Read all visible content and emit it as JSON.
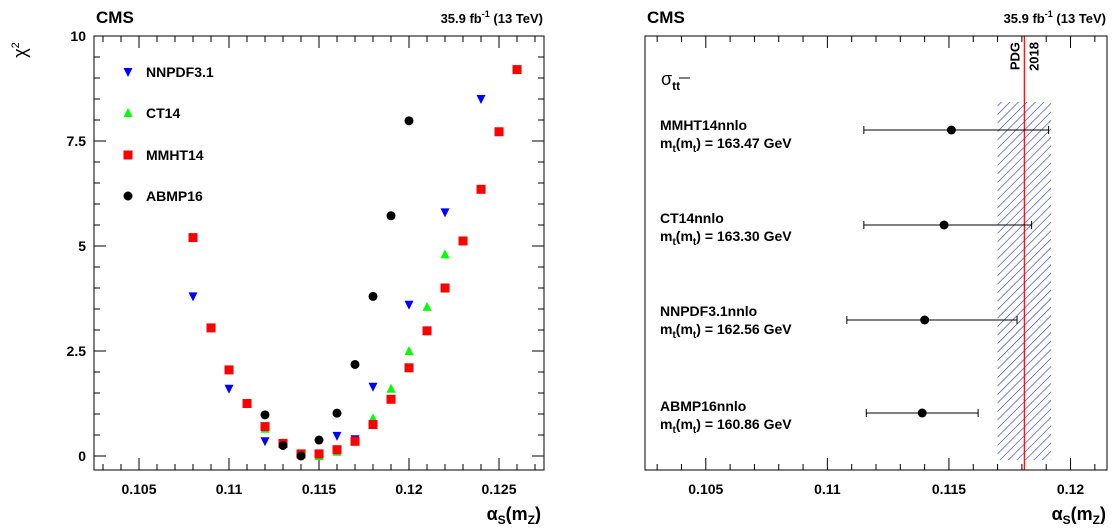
{
  "chart_data": [
    {
      "type": "scatter",
      "experiment": "CMS",
      "lumi": "35.9 fb",
      "lumi_sup": "-1",
      "energy": "(13 TeV)",
      "ylabel": "χ",
      "ylabel_sup": "2",
      "xlabel_main": "α",
      "xlabel_sub": "S",
      "xlabel_rest": "(m",
      "xlabel_sub2": "Z",
      "xlabel_end": ")",
      "xlim": [
        0.1025,
        0.1275
      ],
      "ylim": [
        0,
        10
      ],
      "x_ticks": [
        0.105,
        0.11,
        0.115,
        0.12,
        0.125
      ],
      "x_tick_labels": [
        "0.105",
        "0.11",
        "0.115",
        "0.12",
        "0.125"
      ],
      "y_ticks": [
        0,
        2.5,
        5,
        7.5,
        10
      ],
      "y_tick_labels": [
        "0",
        "2.5",
        "5",
        "7.5",
        "10"
      ],
      "legend_position": "top-left",
      "series": [
        {
          "name": "NNPDF3.1",
          "marker": "triangle-down",
          "color": "#0000ff",
          "x": [
            0.108,
            0.11,
            0.111,
            0.112,
            0.113,
            0.114,
            0.115,
            0.116,
            0.117,
            0.118,
            0.12,
            0.122,
            0.124
          ],
          "y": [
            3.8,
            1.6,
            1.25,
            0.35,
            0.28,
            0.05,
            0.05,
            0.48,
            0.4,
            1.65,
            3.6,
            5.8,
            8.5
          ]
        },
        {
          "name": "CT14",
          "marker": "triangle-up",
          "color": "#00ff00",
          "x": [
            0.111,
            0.112,
            0.113,
            0.114,
            0.115,
            0.116,
            0.117,
            0.118,
            0.119,
            0.12,
            0.121,
            0.122
          ],
          "y": [
            1.25,
            0.65,
            0.3,
            0.05,
            0.0,
            0.1,
            0.35,
            0.9,
            1.6,
            2.5,
            3.55,
            4.8
          ]
        },
        {
          "name": "MMHT14",
          "marker": "square",
          "color": "#ff0000",
          "x": [
            0.108,
            0.109,
            0.11,
            0.111,
            0.112,
            0.113,
            0.114,
            0.115,
            0.116,
            0.117,
            0.118,
            0.119,
            0.12,
            0.121,
            0.122,
            0.123,
            0.124,
            0.125,
            0.126
          ],
          "y": [
            5.2,
            3.05,
            2.05,
            1.25,
            0.7,
            0.3,
            0.05,
            0.05,
            0.15,
            0.35,
            0.75,
            1.35,
            2.1,
            2.98,
            4.0,
            5.12,
            6.35,
            7.72,
            9.2
          ]
        },
        {
          "name": "ABMP16",
          "marker": "circle",
          "color": "#000000",
          "x": [
            0.112,
            0.113,
            0.114,
            0.115,
            0.116,
            0.117,
            0.118,
            0.119,
            0.12
          ],
          "y": [
            0.98,
            0.25,
            0.0,
            0.38,
            1.02,
            2.18,
            3.8,
            5.72,
            7.98
          ]
        }
      ]
    },
    {
      "type": "errorbar",
      "experiment": "CMS",
      "lumi": "35.9 fb",
      "lumi_sup": "-1",
      "energy": "(13 TeV)",
      "title_sym": "σ",
      "title_sub": "tt",
      "xlabel_main": "α",
      "xlabel_sub": "S",
      "xlabel_rest": "(m",
      "xlabel_sub2": "Z",
      "xlabel_end": ")",
      "xlim": [
        0.1025,
        0.1215
      ],
      "x_ticks": [
        0.105,
        0.11,
        0.115,
        0.12
      ],
      "x_tick_labels": [
        "0.105",
        "0.11",
        "0.115",
        "0.12"
      ],
      "reference": {
        "value": 0.1181,
        "uncertainty": 0.0011,
        "label1": "PDG",
        "label2": "2018",
        "line_color": "#ff0000",
        "band_color": "#0000cc"
      },
      "points": [
        {
          "label": "MMHT14nnlo",
          "mass_prefix": "m",
          "mass_sub1": "t",
          "mass_mid": "(m",
          "mass_sub2": "t",
          "mass_value": ") = 163.47 GeV",
          "value": 0.1151,
          "err_lo": 0.0036,
          "err_hi": 0.004
        },
        {
          "label": "CT14nnlo",
          "mass_prefix": "m",
          "mass_sub1": "t",
          "mass_mid": "(m",
          "mass_sub2": "t",
          "mass_value": ") = 163.30 GeV",
          "value": 0.1148,
          "err_lo": 0.0033,
          "err_hi": 0.0036
        },
        {
          "label": "NNPDF3.1nnlo",
          "mass_prefix": "m",
          "mass_sub1": "t",
          "mass_mid": "(m",
          "mass_sub2": "t",
          "mass_value": ") = 162.56 GeV",
          "value": 0.114,
          "err_lo": 0.0032,
          "err_hi": 0.0038
        },
        {
          "label": "ABMP16nnlo",
          "mass_prefix": "m",
          "mass_sub1": "t",
          "mass_mid": "(m",
          "mass_sub2": "t",
          "mass_value": ") = 160.86 GeV",
          "value": 0.1139,
          "err_lo": 0.0023,
          "err_hi": 0.0023
        }
      ]
    }
  ]
}
